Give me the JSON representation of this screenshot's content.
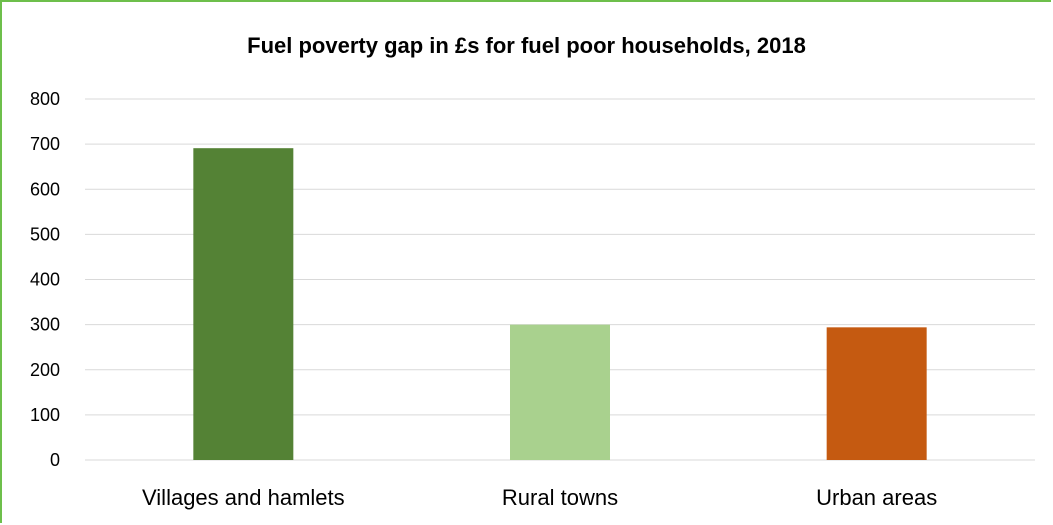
{
  "chart_data": {
    "type": "bar",
    "title": "Fuel poverty gap in £s for fuel poor households, 2018",
    "categories": [
      "Villages and hamlets",
      "Rural towns",
      "Urban areas"
    ],
    "values": [
      691,
      300,
      294
    ],
    "colors": [
      "#548235",
      "#a9d18e",
      "#c55a11"
    ],
    "ylim": [
      0,
      800
    ],
    "yticks": [
      0,
      100,
      200,
      300,
      400,
      500,
      600,
      700,
      800
    ],
    "grid": true,
    "xlabel": "",
    "ylabel": ""
  }
}
